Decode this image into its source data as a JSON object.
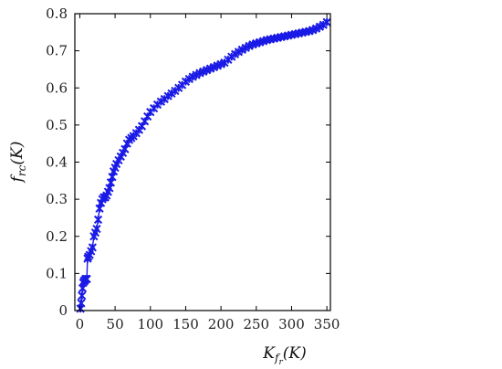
{
  "chart_data": {
    "type": "line",
    "xlabel": {
      "main": "K",
      "sub": "f",
      "subsub": "r",
      "rest": "(K)"
    },
    "ylabel": {
      "main": "f",
      "sub": "rc",
      "rest": "(K)"
    },
    "xlim": [
      -7,
      355
    ],
    "ylim": [
      0,
      0.8
    ],
    "xticks": [
      "0",
      "50",
      "100",
      "150",
      "200",
      "250",
      "300",
      "350"
    ],
    "yticks": [
      "0",
      "0.1",
      "0.2",
      "0.3",
      "0.4",
      "0.5",
      "0.6",
      "0.7",
      "0.8"
    ],
    "grid": false,
    "legend": "none",
    "color": "#1a1ae6",
    "series": [
      {
        "x": [
          1,
          2,
          3,
          4,
          5,
          6,
          7,
          8,
          9,
          10,
          11,
          12,
          14,
          16,
          18,
          20,
          22,
          24,
          26,
          28,
          30,
          32,
          34,
          36,
          38,
          40,
          42,
          44,
          46,
          48,
          50,
          52,
          55,
          58,
          61,
          64,
          67,
          70,
          73,
          76,
          80,
          84,
          88,
          92,
          96,
          100,
          105,
          110,
          115,
          120,
          125,
          130,
          135,
          140,
          145,
          150,
          155,
          160,
          165,
          170,
          175,
          180,
          185,
          190,
          195,
          200,
          205,
          210,
          215,
          220,
          225,
          230,
          235,
          240,
          245,
          250,
          255,
          260,
          265,
          270,
          275,
          280,
          285,
          290,
          295,
          300,
          305,
          310,
          315,
          320,
          325,
          330,
          335,
          340,
          345,
          350
        ],
        "y": [
          0.005,
          0.02,
          0.04,
          0.06,
          0.075,
          0.08,
          0.08,
          0.085,
          0.085,
          0.085,
          0.14,
          0.145,
          0.15,
          0.16,
          0.17,
          0.2,
          0.21,
          0.22,
          0.245,
          0.275,
          0.29,
          0.3,
          0.305,
          0.305,
          0.31,
          0.32,
          0.33,
          0.345,
          0.36,
          0.375,
          0.385,
          0.395,
          0.405,
          0.415,
          0.425,
          0.435,
          0.45,
          0.46,
          0.465,
          0.47,
          0.478,
          0.487,
          0.497,
          0.51,
          0.523,
          0.535,
          0.545,
          0.555,
          0.563,
          0.57,
          0.578,
          0.585,
          0.592,
          0.6,
          0.608,
          0.617,
          0.624,
          0.63,
          0.635,
          0.64,
          0.644,
          0.648,
          0.652,
          0.656,
          0.66,
          0.664,
          0.668,
          0.676,
          0.684,
          0.691,
          0.697,
          0.703,
          0.708,
          0.713,
          0.717,
          0.72,
          0.723,
          0.726,
          0.729,
          0.731,
          0.733,
          0.735,
          0.737,
          0.739,
          0.741,
          0.743,
          0.745,
          0.747,
          0.749,
          0.751,
          0.753,
          0.756,
          0.76,
          0.765,
          0.77,
          0.777
        ]
      }
    ]
  }
}
